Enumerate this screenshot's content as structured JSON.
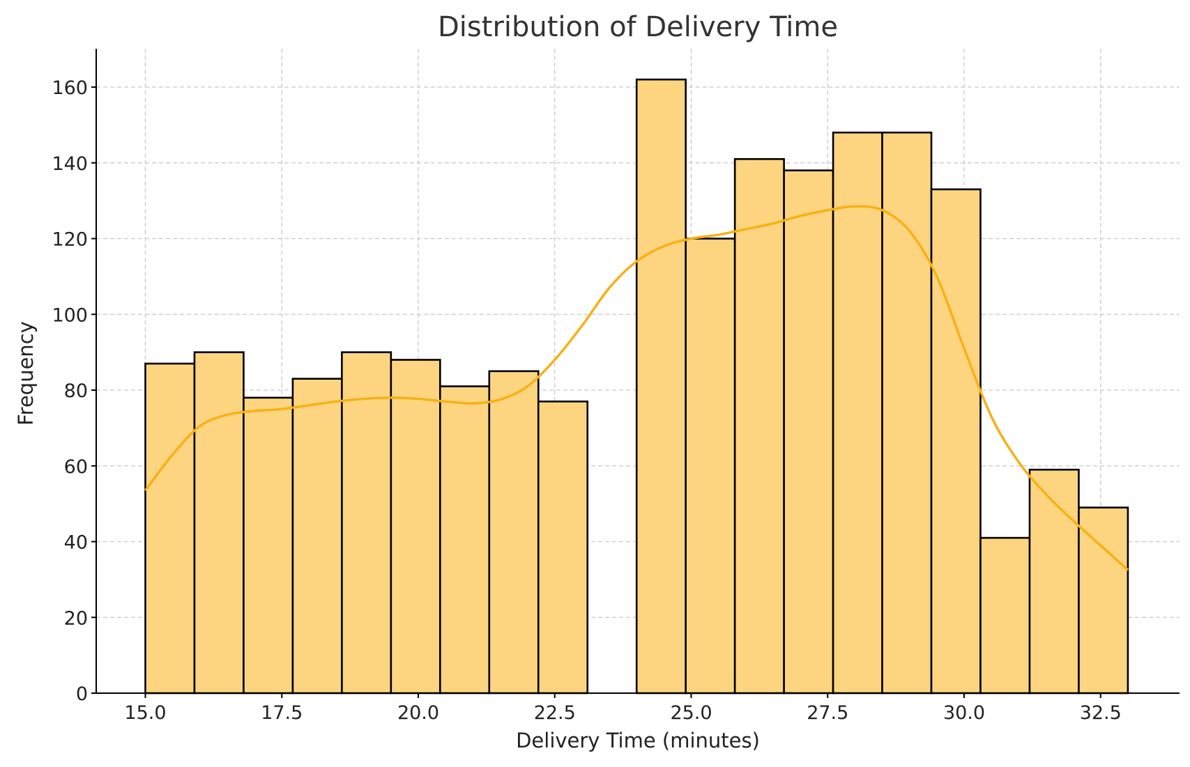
{
  "chart_data": {
    "type": "bar",
    "subtype": "histogram",
    "title": "Distribution of Delivery Time",
    "xlabel": "Delivery Time (minutes)",
    "ylabel": "Frequency",
    "xlim": [
      13.5,
      33.5
    ],
    "ylim": [
      0,
      170
    ],
    "grid": true,
    "xticks": [
      15.0,
      17.5,
      20.0,
      22.5,
      25.0,
      27.5,
      30.0,
      32.5
    ],
    "xtick_labels": [
      "15.0",
      "17.5",
      "20.0",
      "22.5",
      "25.0",
      "27.5",
      "30.0",
      "32.5"
    ],
    "yticks": [
      0,
      20,
      40,
      60,
      80,
      100,
      120,
      140,
      160
    ],
    "ytick_labels": [
      "0",
      "20",
      "40",
      "60",
      "80",
      "100",
      "120",
      "140",
      "160"
    ],
    "bin_start": 15.0,
    "bin_width": 0.9,
    "counts": [
      87,
      90,
      78,
      83,
      90,
      88,
      81,
      85,
      77,
      0,
      162,
      120,
      141,
      138,
      148,
      148,
      133,
      41,
      59,
      49
    ],
    "kde": {
      "x": [
        15.0,
        15.5,
        16.0,
        16.5,
        17.0,
        17.5,
        18.0,
        18.5,
        19.0,
        19.5,
        20.0,
        20.5,
        21.0,
        21.5,
        22.0,
        22.5,
        23.0,
        23.5,
        24.0,
        24.5,
        25.0,
        25.5,
        26.0,
        26.5,
        27.0,
        27.5,
        28.0,
        28.5,
        29.0,
        29.5,
        30.0,
        30.5,
        31.0,
        31.5,
        32.0,
        32.5,
        33.0
      ],
      "y": [
        53.5,
        63,
        70.5,
        73.5,
        74.5,
        75,
        76,
        77,
        77.7,
        78,
        77.7,
        77,
        76.5,
        77.5,
        81,
        88,
        97,
        107,
        114,
        118,
        120,
        121,
        122.5,
        124,
        126,
        127.5,
        128.5,
        127.5,
        122,
        110,
        91,
        73,
        61,
        52.5,
        45.5,
        39,
        32.5
      ]
    },
    "colors": {
      "bar_fill": "#fdd581",
      "bar_edge": "#000000",
      "kde_line": "#f8b114"
    }
  }
}
